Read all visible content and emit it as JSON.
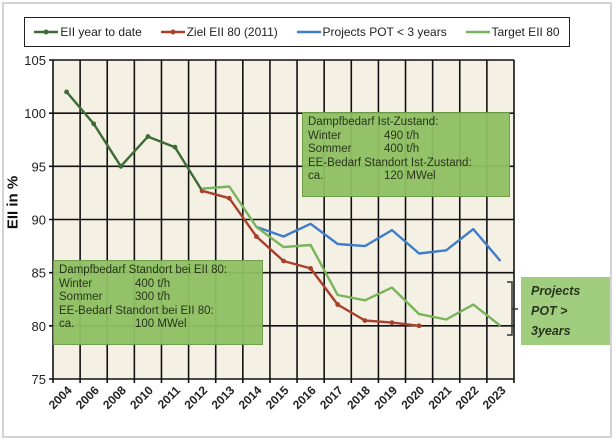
{
  "chart_data": {
    "type": "line",
    "title": "",
    "xlabel": "",
    "ylabel": "EII in %",
    "ylim": [
      75,
      105
    ],
    "yticks": [
      75,
      80,
      85,
      90,
      95,
      100,
      105
    ],
    "grid": true,
    "legend_position": "top",
    "categories": [
      "2004",
      "2006",
      "2008",
      "2010",
      "2011",
      "2012",
      "2013",
      "2014",
      "2015",
      "2016",
      "2017",
      "2018",
      "2019",
      "2020",
      "2021",
      "2022",
      "2023"
    ],
    "series": [
      {
        "name": "EII year to date",
        "color": "#3d6b34",
        "markers": true,
        "values": [
          102,
          99,
          95,
          97.8,
          96.8,
          92.7,
          null,
          null,
          null,
          null,
          null,
          null,
          null,
          null,
          null,
          null,
          null
        ]
      },
      {
        "name": "Ziel EII 80 (2011)",
        "color": "#a8402c",
        "markers": true,
        "values": [
          null,
          null,
          null,
          null,
          null,
          92.7,
          92.0,
          88.4,
          86.1,
          85.4,
          82.0,
          80.5,
          80.3,
          80.0,
          null,
          null,
          null
        ]
      },
      {
        "name": "Projects POT < 3 years",
        "color": "#3f7ccb",
        "markers": false,
        "values": [
          null,
          null,
          null,
          null,
          null,
          null,
          null,
          89.3,
          88.4,
          89.6,
          87.7,
          87.5,
          89.0,
          86.8,
          87.1,
          89.1,
          86.1
        ]
      },
      {
        "name": "Target EII 80",
        "color": "#78b45a",
        "markers": false,
        "values": [
          null,
          null,
          null,
          null,
          null,
          92.9,
          93.1,
          89.3,
          87.4,
          87.6,
          82.9,
          82.4,
          83.6,
          81.1,
          80.6,
          82.0,
          80.0
        ]
      }
    ],
    "annotations": {
      "current": {
        "title": "Dampfbedarf Ist-Zustand:",
        "rows": [
          [
            "Winter",
            "490 t/h"
          ],
          [
            "Sommer",
            "400 t/h"
          ]
        ],
        "subtitle": "EE-Bedarf Standort Ist-Zustand:",
        "last": [
          "ca.",
          "120 MWel"
        ]
      },
      "target": {
        "title": "Dampfbedarf Standort bei EII 80:",
        "rows": [
          [
            "Winter",
            "400 t/h"
          ],
          [
            "Sommer",
            "300 t/h"
          ]
        ],
        "subtitle": "EE-Bedarf Standort bei EII 80:",
        "last": [
          "ca.",
          "100 MWel"
        ]
      },
      "projects_label": [
        "Projects",
        "POT >",
        "3years"
      ]
    }
  }
}
